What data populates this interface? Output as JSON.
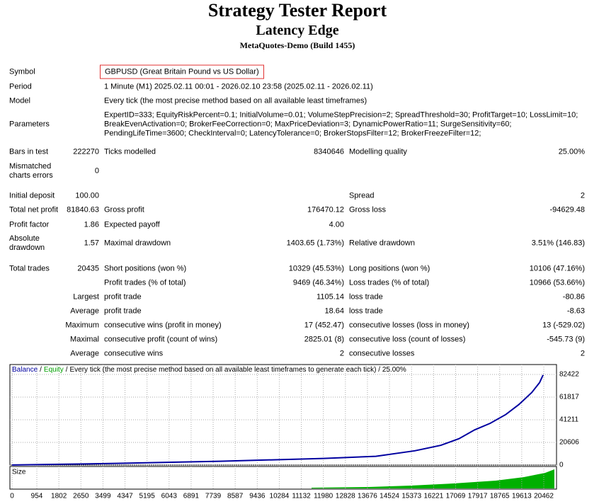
{
  "header": {
    "title": "Strategy Tester Report",
    "subtitle": "Latency Edge",
    "build": "MetaQuotes-Demo (Build 1455)"
  },
  "info": [
    {
      "label": "Symbol",
      "value": "GBPUSD (Great Britain Pound vs US Dollar)"
    },
    {
      "label": "Period",
      "value": "1 Minute (M1) 2025.02.11 00:01 - 2026.02.10 23:58 (2025.02.11 - 2026.02.11)"
    },
    {
      "label": "Model",
      "value": "Every tick (the most precise method based on all available least timeframes)"
    },
    {
      "label": "Parameters",
      "value_lines": [
        "ExpertID=333; EquityRiskPercent=0.1; InitialVolume=0.01; VolumeStepPrecision=2; SpreadThreshold=30; ProfitTarget=10; LossLimit=10;",
        "BreakEvenActivation=0; BrokerFeeCorrection=0; MaxPriceDeviation=3; DynamicPowerRatio=11; SurgeSensitivity=60;",
        "PendingLifeTime=3600; CheckInterval=0; LatencyTolerance=0; BrokerStopsFilter=12; BrokerFreezeFilter=12;"
      ]
    }
  ],
  "stats": [
    [
      "Bars in test",
      "222270",
      "Ticks modelled",
      "8340646",
      "Modelling quality",
      "25.00%"
    ],
    [
      "Mismatched charts errors",
      "0",
      null,
      null,
      null,
      null
    ],
    [
      "Initial deposit",
      "100.00",
      null,
      null,
      "Spread",
      "2"
    ],
    [
      "Total net profit",
      "81840.63",
      "Gross profit",
      "176470.12",
      "Gross loss",
      "-94629.48"
    ],
    [
      "Profit factor",
      "1.86",
      "Expected payoff",
      "4.00",
      null,
      null
    ],
    [
      "Absolute drawdown",
      "1.57",
      "Maximal drawdown",
      "1403.65 (1.73%)",
      "Relative drawdown",
      "3.51% (146.83)"
    ],
    [
      "Total trades",
      "20435",
      "Short positions (won %)",
      "10329 (45.53%)",
      "Long positions (won %)",
      "10106 (47.16%)"
    ],
    [
      null,
      null,
      "Profit trades (% of total)",
      "9469 (46.34%)",
      "Loss trades (% of total)",
      "10966 (53.66%)"
    ],
    [
      "Largest",
      null,
      "profit trade",
      "1105.14",
      "loss trade",
      "-80.86"
    ],
    [
      "Average",
      null,
      "profit trade",
      "18.64",
      "loss trade",
      "-8.63"
    ],
    [
      "Maximum",
      null,
      "consecutive wins (profit in money)",
      "17 (452.47)",
      "consecutive losses (loss in money)",
      "13 (-529.02)"
    ],
    [
      "Maximal",
      null,
      "consecutive profit (count of wins)",
      "2825.01 (8)",
      "consecutive loss (count of losses)",
      "-545.73 (9)"
    ],
    [
      "Average",
      null,
      "consecutive wins",
      "2",
      "consecutive losses",
      "2"
    ]
  ],
  "chart": {
    "series": [
      {
        "name": "Balance",
        "color": "#0000a0",
        "values": [
          100,
          1500,
          3500,
          6000,
          8000,
          13000,
          18000,
          24000,
          32000,
          38000,
          46000,
          55000,
          66000,
          75000,
          81940
        ]
      },
      {
        "name": "Equity",
        "color": "#00a000"
      }
    ],
    "separator": "/",
    "description": "Every tick (the most precise method based on all available least timeframes to generate each tick) / 25.00%",
    "x": [
      0,
      4000,
      8000,
      12000,
      14000,
      15500,
      16500,
      17200,
      17800,
      18400,
      19000,
      19500,
      20000,
      20300,
      20435
    ],
    "xlim": [
      -82,
      20952
    ],
    "ylim": [
      0,
      91440
    ],
    "yticks": [
      0,
      20606,
      41211,
      61817,
      82422
    ],
    "xticks": [
      0,
      954,
      1802,
      2650,
      3499,
      4347,
      5195,
      6043,
      6891,
      7739,
      8587,
      9436,
      10284,
      11132,
      11980,
      12828,
      13676,
      14524,
      15373,
      16221,
      17069,
      17917,
      18765,
      19613,
      20462
    ],
    "size_label": "Size"
  }
}
